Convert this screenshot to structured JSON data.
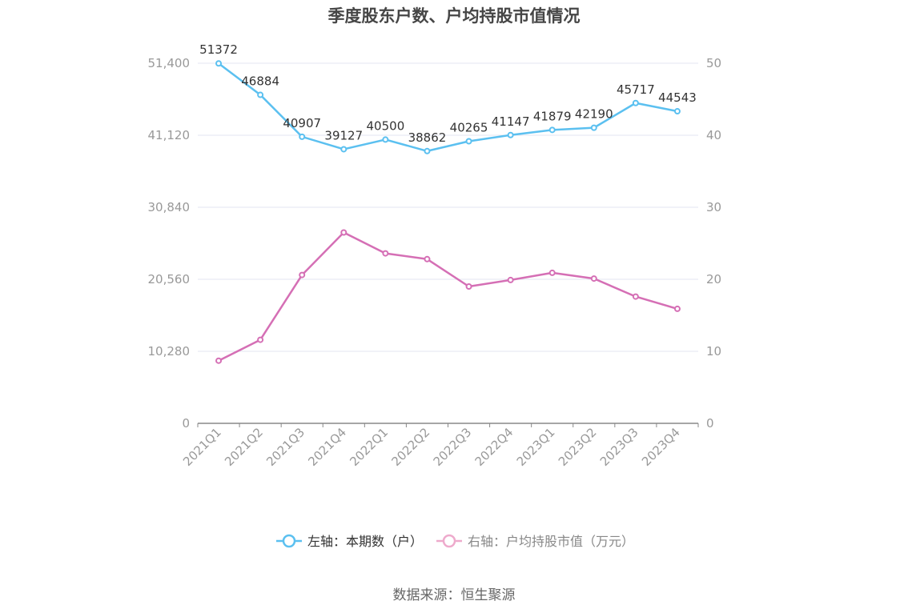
{
  "chart_data": {
    "type": "line",
    "title": "季度股东户数、户均持股市值情况",
    "categories": [
      "2021Q1",
      "2021Q2",
      "2021Q3",
      "2021Q4",
      "2022Q1",
      "2022Q2",
      "2022Q3",
      "2022Q4",
      "2023Q1",
      "2023Q2",
      "2023Q3",
      "2023Q4"
    ],
    "series": [
      {
        "name": "左轴：本期数（户）",
        "axis": "left",
        "color": "#5bc0f0",
        "values": [
          51372,
          46884,
          40907,
          39127,
          40500,
          38862,
          40265,
          41147,
          41879,
          42190,
          45717,
          44543
        ],
        "labels": [
          "51372",
          "46884",
          "40907",
          "39127",
          "40500",
          "38862",
          "40265",
          "41147",
          "41879",
          "42190",
          "45717",
          "44543"
        ]
      },
      {
        "name": "右轴：户均持股市值（万元）",
        "axis": "right",
        "color": "#d56fb5",
        "legend_color": "#eeaacc",
        "values": [
          8.7,
          11.6,
          20.6,
          26.5,
          23.6,
          22.8,
          19.0,
          19.9,
          20.9,
          20.1,
          17.6,
          15.9
        ]
      }
    ],
    "left_axis": {
      "ylim": [
        0,
        51400
      ],
      "ticks": [
        "0",
        "10,280",
        "20,560",
        "30,840",
        "41,120",
        "51,400"
      ]
    },
    "right_axis": {
      "ylim": [
        0,
        50
      ],
      "ticks": [
        "0",
        "10",
        "20",
        "30",
        "40",
        "50"
      ]
    },
    "grid": true,
    "legend_position": "bottom"
  },
  "footer": {
    "source": "数据来源：恒生聚源"
  }
}
